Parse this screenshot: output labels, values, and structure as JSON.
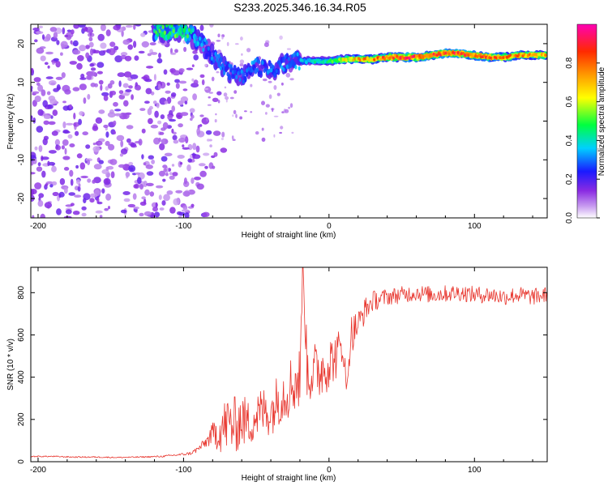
{
  "title": "S233.2025.346.16.34.R05",
  "colors": {
    "line": "#e8372f",
    "ridge_low": "#2f3bff",
    "ridge_mid": "#00e5d0",
    "ridge_high": "#ff2d1f",
    "noise": "#8a2be2"
  },
  "chart_data": [
    {
      "type": "heatmap",
      "name": "spectrogram",
      "xlabel": "Height of straight line (km)",
      "ylabel": "Frequency (Hz)",
      "xlim": [
        -205,
        150
      ],
      "ylim": [
        -25,
        25
      ],
      "xticks": [
        -200,
        -100,
        0,
        100
      ],
      "yticks": [
        -20,
        -10,
        0,
        10,
        20
      ],
      "xtick_labels": [
        "-200",
        "-100",
        "0",
        "100"
      ],
      "ytick_labels": [
        "-20",
        "-10",
        "0",
        "10",
        "20"
      ],
      "colorbar": {
        "label": "Normalized spectral amplitude",
        "range": [
          0,
          1
        ],
        "ticks": [
          0.0,
          0.2,
          0.4,
          0.6,
          0.8
        ],
        "tick_labels": [
          "0.0",
          "0.2",
          "0.4",
          "0.6",
          "0.8"
        ],
        "colormap": "rainbow (white-purple-blue-cyan-green-yellow-orange-red-magenta)"
      },
      "noise_region_x": [
        -205,
        -90
      ],
      "ridge": [
        {
          "x": -120,
          "f": 23.5,
          "a": 0.45
        },
        {
          "x": -110,
          "f": 23.5,
          "a": 0.5
        },
        {
          "x": -100,
          "f": 23.5,
          "a": 0.5
        },
        {
          "x": -90,
          "f": 21,
          "a": 0.35
        },
        {
          "x": -80,
          "f": 17,
          "a": 0.3
        },
        {
          "x": -70,
          "f": 13,
          "a": 0.3
        },
        {
          "x": -60,
          "f": 11,
          "a": 0.3
        },
        {
          "x": -50,
          "f": 14,
          "a": 0.3
        },
        {
          "x": -40,
          "f": 13,
          "a": 0.3
        },
        {
          "x": -30,
          "f": 15,
          "a": 0.3
        },
        {
          "x": -20,
          "f": 15.5,
          "a": 0.35
        },
        {
          "x": -10,
          "f": 15.5,
          "a": 0.4
        },
        {
          "x": 0,
          "f": 15.5,
          "a": 0.45
        },
        {
          "x": 10,
          "f": 16,
          "a": 0.6
        },
        {
          "x": 20,
          "f": 16,
          "a": 0.7
        },
        {
          "x": 30,
          "f": 16,
          "a": 0.75
        },
        {
          "x": 40,
          "f": 16.5,
          "a": 0.8
        },
        {
          "x": 50,
          "f": 16.5,
          "a": 0.85
        },
        {
          "x": 60,
          "f": 16.5,
          "a": 0.85
        },
        {
          "x": 70,
          "f": 17,
          "a": 0.8
        },
        {
          "x": 80,
          "f": 17.5,
          "a": 0.85
        },
        {
          "x": 90,
          "f": 17.5,
          "a": 0.85
        },
        {
          "x": 100,
          "f": 17,
          "a": 0.8
        },
        {
          "x": 110,
          "f": 16.5,
          "a": 0.8
        },
        {
          "x": 120,
          "f": 16.5,
          "a": 0.75
        },
        {
          "x": 130,
          "f": 17,
          "a": 0.75
        },
        {
          "x": 140,
          "f": 17,
          "a": 0.7
        },
        {
          "x": 150,
          "f": 17,
          "a": 0.7
        }
      ]
    },
    {
      "type": "line",
      "name": "snr",
      "xlabel": "Height of straight line (km)",
      "ylabel": "SNR (10 * v/v)",
      "xlim": [
        -205,
        150
      ],
      "ylim": [
        0,
        920
      ],
      "xticks": [
        -200,
        -100,
        0,
        100
      ],
      "yticks": [
        0,
        200,
        400,
        600,
        800
      ],
      "xtick_labels": [
        "-200",
        "-100",
        "0",
        "100"
      ],
      "ytick_labels": [
        "0",
        "200",
        "400",
        "600",
        "800"
      ],
      "series": [
        {
          "name": "SNR",
          "x": [
            -205,
            -190,
            -175,
            -160,
            -145,
            -130,
            -115,
            -100,
            -95,
            -90,
            -85,
            -80,
            -75,
            -70,
            -65,
            -60,
            -55,
            -50,
            -45,
            -40,
            -35,
            -30,
            -25,
            -20,
            -18,
            -15,
            -10,
            -5,
            0,
            5,
            10,
            12,
            15,
            20,
            25,
            30,
            40,
            50,
            60,
            70,
            80,
            90,
            100,
            110,
            120,
            130,
            140,
            150
          ],
          "y": [
            25,
            25,
            22,
            22,
            20,
            22,
            25,
            35,
            40,
            60,
            90,
            130,
            150,
            180,
            170,
            200,
            180,
            220,
            240,
            230,
            300,
            330,
            370,
            390,
            920,
            430,
            420,
            440,
            470,
            500,
            560,
            330,
            600,
            650,
            720,
            760,
            780,
            790,
            800,
            790,
            795,
            800,
            790,
            790,
            780,
            790,
            780,
            790
          ],
          "spike_amplitude": [
            3,
            3,
            3,
            3,
            3,
            3,
            4,
            6,
            8,
            15,
            25,
            55,
            110,
            140,
            140,
            130,
            110,
            120,
            120,
            110,
            130,
            140,
            150,
            160,
            0,
            160,
            150,
            140,
            130,
            110,
            110,
            0,
            100,
            70,
            60,
            50,
            40,
            40,
            40,
            40,
            40,
            40,
            40,
            40,
            40,
            40,
            40,
            40
          ]
        }
      ]
    }
  ]
}
